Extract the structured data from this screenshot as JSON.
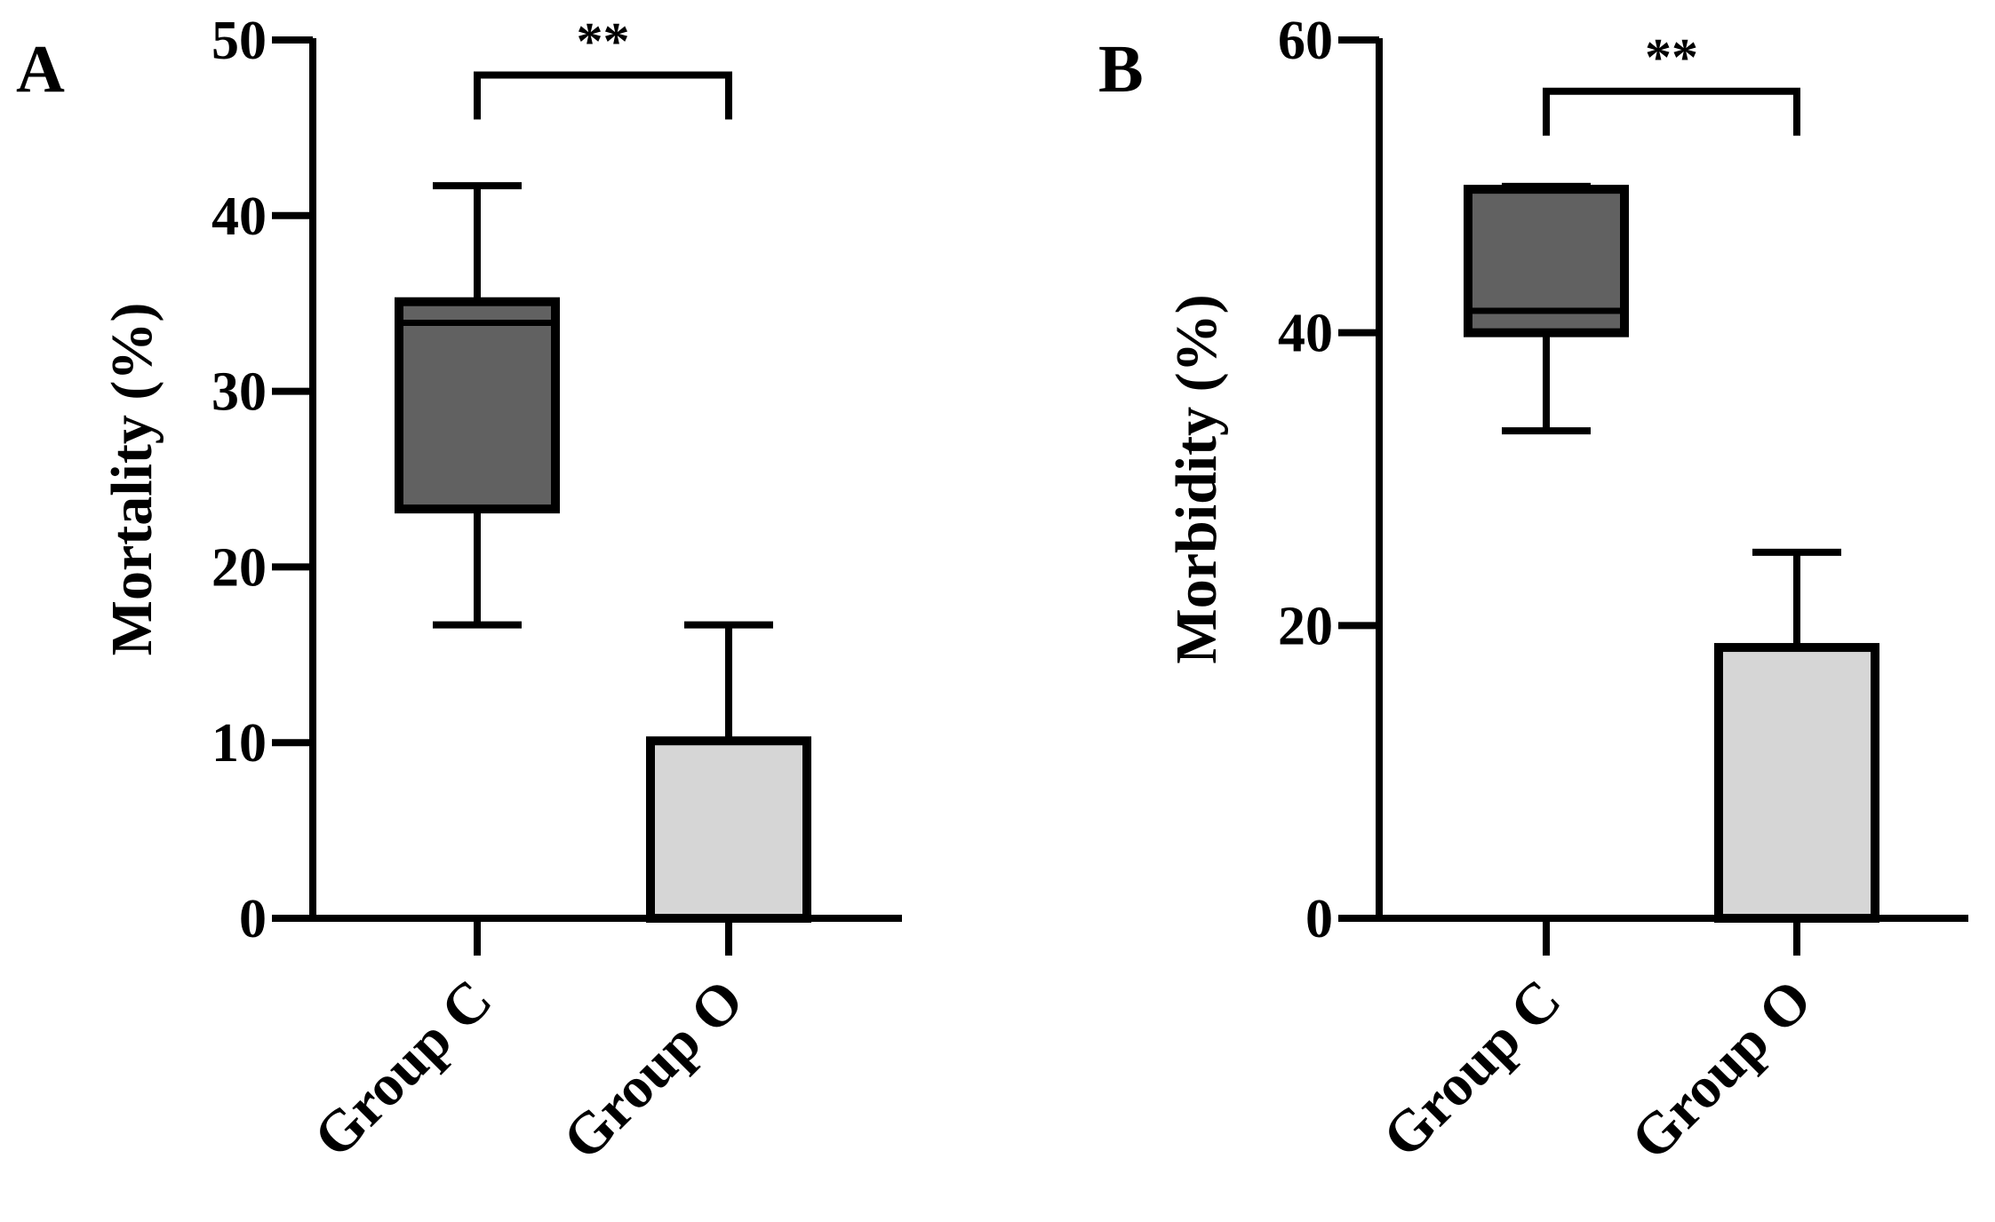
{
  "chart_data": [
    {
      "type": "box",
      "panel_label": "A",
      "ylabel": "Mortality (%)",
      "ylim": [
        0,
        50
      ],
      "yticks": [
        0,
        10,
        20,
        30,
        40,
        50
      ],
      "categories": [
        "Group C",
        "Group O"
      ],
      "boxes": [
        {
          "name": "Group C",
          "min": 16.7,
          "q1": 23.3,
          "median": 33.9,
          "q3": 35.1,
          "max": 41.7,
          "color": "#616161"
        },
        {
          "name": "Group O",
          "min": 0,
          "q1": 0,
          "median": 0,
          "q3": 10.1,
          "max": 16.7,
          "color": "#d6d6d6"
        }
      ],
      "significance": {
        "from": "Group C",
        "to": "Group O",
        "label": "**",
        "level": 48.0
      }
    },
    {
      "type": "box",
      "panel_label": "B",
      "ylabel": "Morbidity (%)",
      "ylim": [
        0,
        60
      ],
      "yticks": [
        0,
        20,
        40,
        60
      ],
      "categories": [
        "Group C",
        "Group O"
      ],
      "boxes": [
        {
          "name": "Group C",
          "min": 33.3,
          "q1": 40.0,
          "median": 41.5,
          "q3": 49.8,
          "max": 50.0,
          "color": "#616161"
        },
        {
          "name": "Group O",
          "min": 0,
          "q1": 0,
          "median": 0,
          "q3": 18.5,
          "max": 25.0,
          "color": "#d6d6d6"
        }
      ],
      "significance": {
        "from": "Group C",
        "to": "Group O",
        "label": "**",
        "level": 56.5
      }
    }
  ]
}
